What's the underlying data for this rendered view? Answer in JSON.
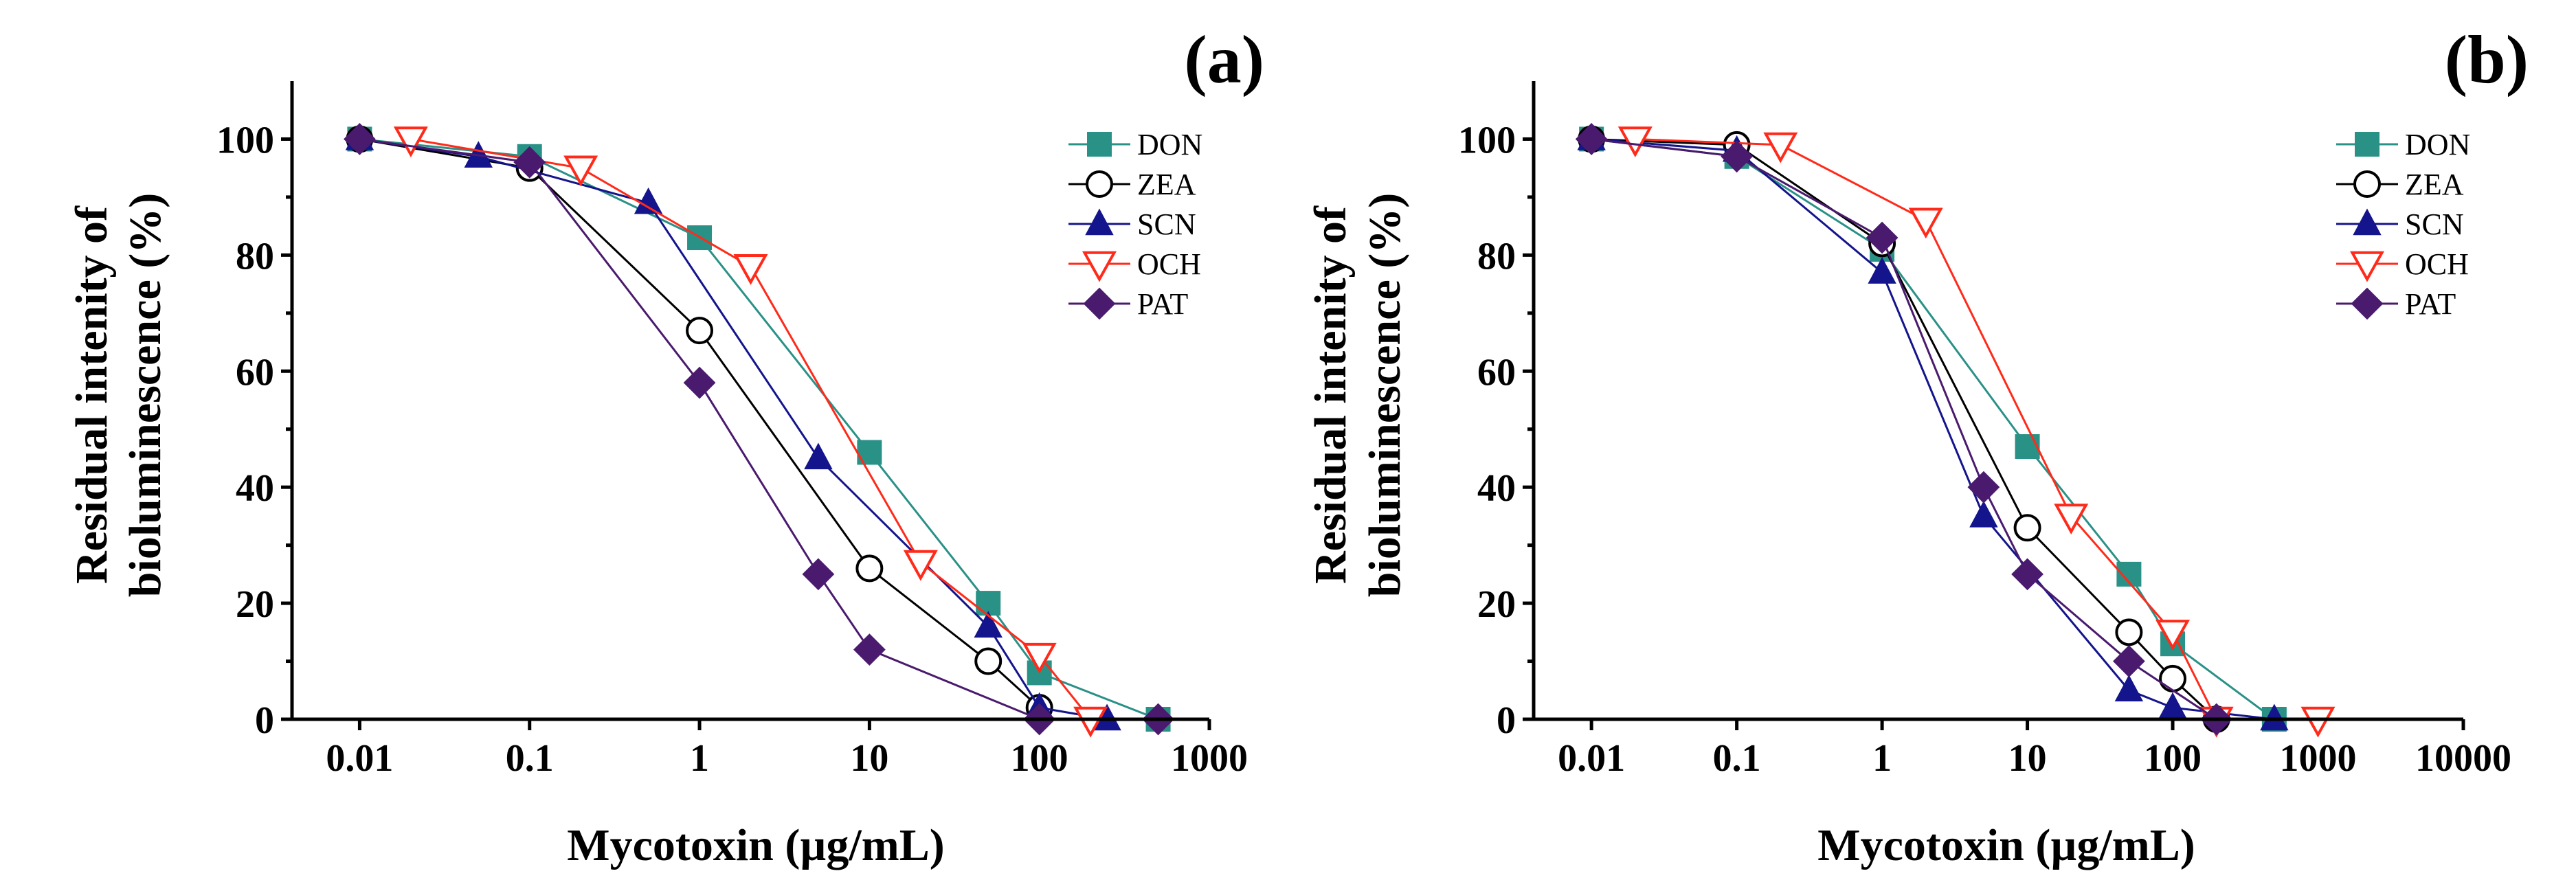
{
  "chart_data": [
    {
      "type": "line",
      "panel": "(a)",
      "xscale": "log",
      "xlabel": "Mycotoxin (µg/mL)",
      "ylabel": [
        "Residual intenity of",
        "bioluminescence (%)"
      ],
      "xlim": [
        0.004,
        1000
      ],
      "ylim": [
        0,
        110
      ],
      "xticks": [
        0.01,
        0.1,
        1,
        10,
        100,
        1000
      ],
      "xtick_labels": [
        "0.01",
        "0.1",
        "1",
        "10",
        "100",
        "1000"
      ],
      "yticks": [
        0,
        20,
        40,
        60,
        80,
        100
      ],
      "ytick_labels": [
        "0",
        "20",
        "40",
        "60",
        "80",
        "100"
      ],
      "legend_position": "top-right",
      "series": [
        {
          "name": "DON",
          "color": "#2a9187",
          "marker": "square",
          "x": [
            0.01,
            0.1,
            1,
            10,
            50,
            100,
            500
          ],
          "y": [
            100,
            97,
            83,
            46,
            20,
            8,
            0
          ]
        },
        {
          "name": "ZEA",
          "color": "#000000",
          "marker": "circle-open",
          "x": [
            0.01,
            0.1,
            1,
            10,
            50,
            100
          ],
          "y": [
            100,
            95,
            67,
            26,
            10,
            2
          ]
        },
        {
          "name": "SCN",
          "color": "#14148c",
          "marker": "triangle",
          "x": [
            0.01,
            0.05,
            0.5,
            5,
            50,
            100,
            250
          ],
          "y": [
            100,
            97,
            89,
            45,
            16,
            2,
            0
          ]
        },
        {
          "name": "OCH",
          "color": "#ff2a1a",
          "marker": "triangle-down-open",
          "x": [
            0.02,
            0.2,
            2,
            20,
            100,
            200
          ],
          "y": [
            100,
            95,
            78,
            27,
            11,
            0
          ]
        },
        {
          "name": "PAT",
          "color": "#4a1a6e",
          "marker": "diamond",
          "x": [
            0.01,
            0.1,
            1,
            5,
            10,
            100,
            500
          ],
          "y": [
            100,
            96,
            58,
            25,
            12,
            0,
            0
          ]
        }
      ]
    },
    {
      "type": "line",
      "panel": "(b)",
      "xscale": "log",
      "xlabel": "Mycotoxin (µg/mL)",
      "ylabel": [
        "Residual intenity of",
        "bioluminescence (%)"
      ],
      "xlim": [
        0.004,
        10000
      ],
      "ylim": [
        0,
        110
      ],
      "xticks": [
        0.01,
        0.1,
        1,
        10,
        100,
        1000,
        10000
      ],
      "xtick_labels": [
        "0.01",
        "0.1",
        "1",
        "10",
        "100",
        "1000",
        "10000"
      ],
      "yticks": [
        0,
        20,
        40,
        60,
        80,
        100
      ],
      "ytick_labels": [
        "0",
        "20",
        "40",
        "60",
        "80",
        "100"
      ],
      "legend_position": "top-right",
      "series": [
        {
          "name": "DON",
          "color": "#2a9187",
          "marker": "square",
          "x": [
            0.01,
            0.1,
            1,
            10,
            50,
            100,
            500
          ],
          "y": [
            100,
            97,
            81,
            47,
            25,
            13,
            0
          ]
        },
        {
          "name": "ZEA",
          "color": "#000000",
          "marker": "circle-open",
          "x": [
            0.01,
            0.1,
            1,
            10,
            50,
            100,
            200
          ],
          "y": [
            100,
            99,
            82,
            33,
            15,
            7,
            0
          ]
        },
        {
          "name": "SCN",
          "color": "#14148c",
          "marker": "triangle",
          "x": [
            0.01,
            0.1,
            1,
            5,
            50,
            100,
            500
          ],
          "y": [
            100,
            98,
            77,
            35,
            5,
            2,
            0
          ]
        },
        {
          "name": "OCH",
          "color": "#ff2a1a",
          "marker": "triangle-down-open",
          "x": [
            0.02,
            0.2,
            2,
            20,
            100,
            200,
            1000
          ],
          "y": [
            100,
            99,
            86,
            35,
            15,
            0,
            0
          ]
        },
        {
          "name": "PAT",
          "color": "#4a1a6e",
          "marker": "diamond",
          "x": [
            0.01,
            0.1,
            1,
            5,
            10,
            50,
            200
          ],
          "y": [
            100,
            97,
            83,
            40,
            25,
            10,
            0
          ]
        }
      ]
    }
  ]
}
